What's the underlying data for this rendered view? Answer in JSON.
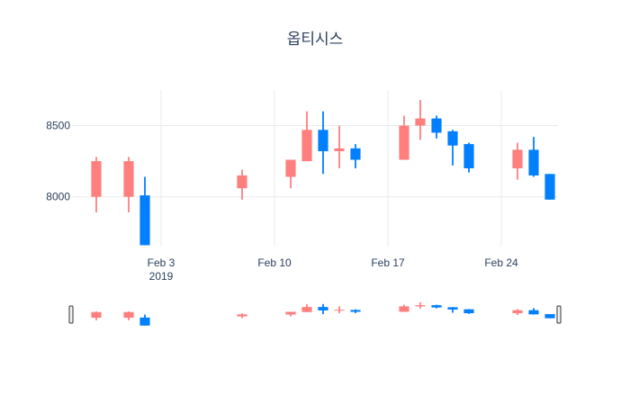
{
  "chart_data": {
    "type": "candlestick",
    "title": "옵티시스",
    "xlabel": "",
    "ylabel": "",
    "x_range": [
      "2019-01-29",
      "2019-02-27"
    ],
    "ylim": [
      7650,
      8750
    ],
    "y_ticks": [
      8000,
      8500
    ],
    "x_ticks": [
      {
        "date": "2019-02-03",
        "label": "Feb 3",
        "sublabel": "2019"
      },
      {
        "date": "2019-02-10",
        "label": "Feb 10",
        "sublabel": ""
      },
      {
        "date": "2019-02-17",
        "label": "Feb 17",
        "sublabel": ""
      },
      {
        "date": "2019-02-24",
        "label": "Feb 24",
        "sublabel": ""
      }
    ],
    "grid": true,
    "rangeslider": true,
    "increasing_color": "#ff7f7f",
    "decreasing_color": "#007fff",
    "candles": [
      {
        "date": "2019-01-30",
        "open": 8000,
        "high": 8280,
        "low": 7890,
        "close": 8250
      },
      {
        "date": "2019-02-01",
        "open": 8000,
        "high": 8280,
        "low": 7890,
        "close": 8250
      },
      {
        "date": "2019-02-02",
        "open": 8010,
        "high": 8140,
        "low": 7660,
        "close": 7660
      },
      {
        "date": "2019-02-08",
        "open": 8060,
        "high": 8190,
        "low": 7980,
        "close": 8150
      },
      {
        "date": "2019-02-11",
        "open": 8140,
        "high": 8260,
        "low": 8060,
        "close": 8260
      },
      {
        "date": "2019-02-12",
        "open": 8250,
        "high": 8600,
        "low": 8250,
        "close": 8470
      },
      {
        "date": "2019-02-13",
        "open": 8470,
        "high": 8600,
        "low": 8160,
        "close": 8320
      },
      {
        "date": "2019-02-14",
        "open": 8320,
        "high": 8500,
        "low": 8200,
        "close": 8340
      },
      {
        "date": "2019-02-15",
        "open": 8340,
        "high": 8370,
        "low": 8200,
        "close": 8260
      },
      {
        "date": "2019-02-18",
        "open": 8260,
        "high": 8570,
        "low": 8260,
        "close": 8500
      },
      {
        "date": "2019-02-19",
        "open": 8500,
        "high": 8680,
        "low": 8400,
        "close": 8550
      },
      {
        "date": "2019-02-20",
        "open": 8550,
        "high": 8570,
        "low": 8410,
        "close": 8450
      },
      {
        "date": "2019-02-21",
        "open": 8460,
        "high": 8470,
        "low": 8220,
        "close": 8360
      },
      {
        "date": "2019-02-22",
        "open": 8370,
        "high": 8380,
        "low": 8170,
        "close": 8200
      },
      {
        "date": "2019-02-25",
        "open": 8200,
        "high": 8380,
        "low": 8120,
        "close": 8330
      },
      {
        "date": "2019-02-26",
        "open": 8330,
        "high": 8420,
        "low": 8140,
        "close": 8150
      },
      {
        "date": "2019-02-27",
        "open": 8160,
        "high": 8160,
        "low": 7980,
        "close": 7980
      }
    ]
  }
}
